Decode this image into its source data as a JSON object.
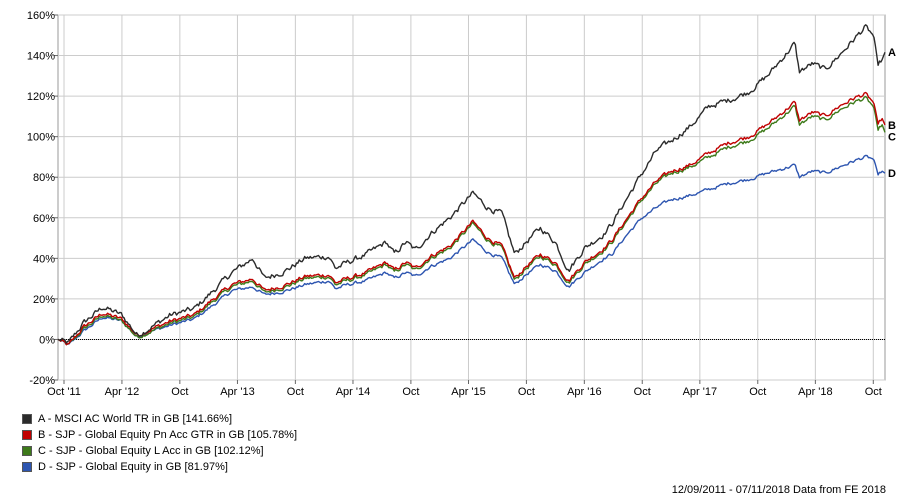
{
  "chart_data": {
    "type": "line",
    "title": "",
    "xlabel": "",
    "ylabel": "",
    "x_ticks": [
      "Oct '11",
      "Apr '12",
      "Oct",
      "Apr '13",
      "Oct",
      "Apr '14",
      "Oct",
      "Apr '15",
      "Oct",
      "Apr '16",
      "Oct",
      "Apr '17",
      "Oct",
      "Apr '18",
      "Oct"
    ],
    "y_ticks": [
      "160%",
      "140%",
      "120%",
      "100%",
      "80%",
      "60%",
      "40%",
      "20%",
      "0%",
      "-20%"
    ],
    "ylim": [
      -20,
      160
    ],
    "xlim": [
      "2011-09-12",
      "2018-11-07"
    ],
    "grid": true,
    "zero_line": true,
    "legend_position": "bottom-left",
    "x": [
      "2011-09-12",
      "2011-10-15",
      "2011-12-01",
      "2012-02-01",
      "2012-04-01",
      "2012-05-20",
      "2012-07-01",
      "2012-09-01",
      "2012-11-15",
      "2013-01-15",
      "2013-03-15",
      "2013-05-20",
      "2013-06-25",
      "2013-09-01",
      "2013-11-01",
      "2014-01-15",
      "2014-02-05",
      "2014-03-15",
      "2014-05-15",
      "2014-07-15",
      "2014-08-10",
      "2014-09-15",
      "2014-10-15",
      "2014-12-01",
      "2015-02-01",
      "2015-04-15",
      "2015-06-01",
      "2015-07-15",
      "2015-08-25",
      "2015-09-30",
      "2015-11-15",
      "2016-01-01",
      "2016-02-11",
      "2016-04-01",
      "2016-06-01",
      "2016-06-27",
      "2016-08-15",
      "2016-10-01",
      "2016-11-15",
      "2017-01-01",
      "2017-03-01",
      "2017-05-01",
      "2017-07-01",
      "2017-09-01",
      "2017-11-01",
      "2018-01-26",
      "2018-02-09",
      "2018-03-23",
      "2018-05-01",
      "2018-06-15",
      "2018-08-01",
      "2018-09-05",
      "2018-10-01",
      "2018-10-15",
      "2018-10-29",
      "2018-11-07"
    ],
    "series": [
      {
        "name": "A - MSCI AC World TR in GB [141.66%]",
        "label": "A",
        "color": "#2b2b2b",
        "values": [
          0,
          -2,
          8,
          16,
          12,
          2,
          6,
          12,
          15,
          24,
          33,
          40,
          30,
          34,
          40,
          41,
          35,
          38,
          42,
          48,
          42,
          48,
          44,
          52,
          60,
          72,
          65,
          62,
          42,
          48,
          55,
          48,
          34,
          45,
          52,
          57,
          70,
          82,
          93,
          98,
          105,
          115,
          118,
          122,
          130,
          146,
          132,
          136,
          133,
          140,
          148,
          154,
          150,
          135,
          138,
          141.66
        ]
      },
      {
        "name": "B - SJP - Global Equity Pn Acc GTR in GB [105.78%]",
        "label": "B",
        "color": "#c00000",
        "values": [
          0,
          -3,
          6,
          13,
          10,
          2,
          5,
          9,
          12,
          20,
          27,
          30,
          24,
          27,
          31,
          32,
          28,
          30,
          33,
          38,
          34,
          38,
          35,
          41,
          46,
          58,
          50,
          46,
          30,
          36,
          42,
          38,
          29,
          38,
          45,
          49,
          60,
          70,
          78,
          83,
          86,
          92,
          97,
          100,
          106,
          117,
          108,
          112,
          110,
          115,
          119,
          121,
          117,
          106,
          109,
          105.78
        ]
      },
      {
        "name": "C - SJP - Global Equity L Acc in GB [102.12%]",
        "label": "C",
        "color": "#3d7a1a",
        "values": [
          0,
          -3,
          5,
          12,
          9,
          1,
          4,
          8,
          11,
          19,
          26,
          29,
          23,
          26,
          30,
          31,
          27,
          29,
          32,
          37,
          33,
          37,
          34,
          40,
          45,
          57,
          49,
          45,
          29,
          35,
          41,
          37,
          28,
          37,
          44,
          48,
          59,
          69,
          77,
          82,
          85,
          90,
          95,
          98,
          104,
          115,
          106,
          110,
          108,
          113,
          117,
          119,
          115,
          103,
          106,
          102.12
        ]
      },
      {
        "name": "D - SJP - Global Equity in GB [81.97%]",
        "label": "D",
        "color": "#2d55b0",
        "values": [
          0,
          -3,
          4,
          11,
          9,
          1,
          4,
          7,
          10,
          17,
          24,
          26,
          22,
          24,
          27,
          29,
          25,
          27,
          29,
          33,
          30,
          33,
          31,
          36,
          40,
          49,
          43,
          40,
          27,
          32,
          37,
          34,
          26,
          33,
          40,
          42,
          52,
          60,
          65,
          69,
          71,
          74,
          77,
          79,
          82,
          86,
          80,
          83,
          82,
          85,
          88,
          90,
          89,
          81,
          83,
          81.97
        ]
      }
    ],
    "footer": "12/09/2011 - 07/11/2018 Data from FE 2018"
  }
}
